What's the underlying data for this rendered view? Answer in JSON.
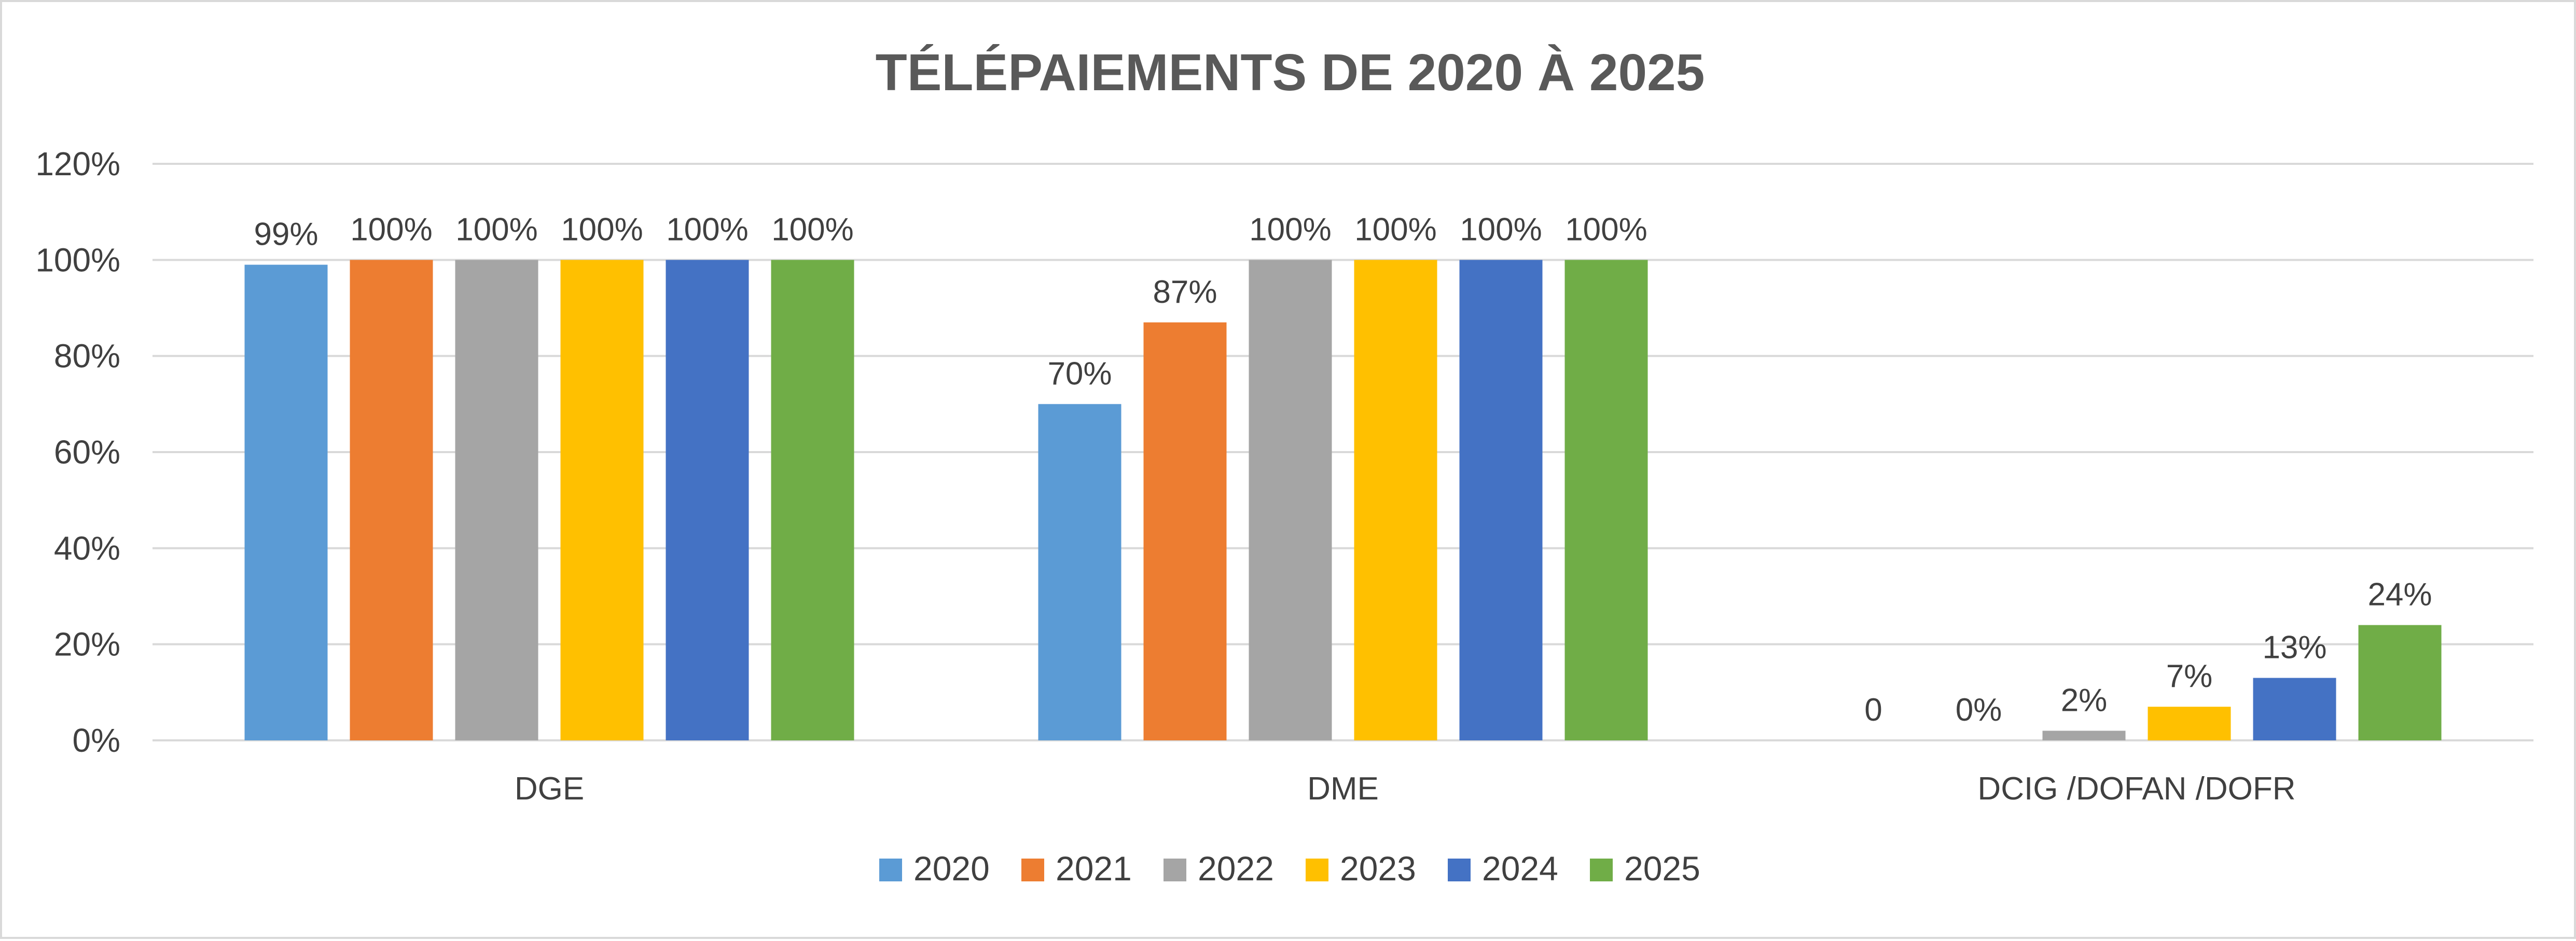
{
  "chart_data": {
    "type": "bar",
    "title": "TÉLÉPAIEMENTS DE 2020 À 2025",
    "xlabel": "",
    "ylabel": "",
    "ylim": [
      0,
      1.2
    ],
    "y_ticks": [
      {
        "value": 0,
        "label": "0%"
      },
      {
        "value": 0.2,
        "label": "20%"
      },
      {
        "value": 0.4,
        "label": "40%"
      },
      {
        "value": 0.6,
        "label": "60%"
      },
      {
        "value": 0.8,
        "label": "80%"
      },
      {
        "value": 1.0,
        "label": "100%"
      },
      {
        "value": 1.2,
        "label": "120%"
      }
    ],
    "grid": true,
    "legend_position": "bottom",
    "categories": [
      "DGE",
      "DME",
      "DCIG /DOFAN /DOFR"
    ],
    "series": [
      {
        "name": "2020",
        "color": "#5b9bd5",
        "values": [
          0.99,
          0.7,
          0
        ],
        "labels": [
          "99%",
          "70%",
          "0"
        ]
      },
      {
        "name": "2021",
        "color": "#ed7d31",
        "values": [
          1.0,
          0.87,
          0
        ],
        "labels": [
          "100%",
          "87%",
          "0%"
        ]
      },
      {
        "name": "2022",
        "color": "#a5a5a5",
        "values": [
          1.0,
          1.0,
          0.02
        ],
        "labels": [
          "100%",
          "100%",
          "2%"
        ]
      },
      {
        "name": "2023",
        "color": "#ffc000",
        "values": [
          1.0,
          1.0,
          0.07
        ],
        "labels": [
          "100%",
          "100%",
          "7%"
        ]
      },
      {
        "name": "2024",
        "color": "#4472c4",
        "values": [
          1.0,
          1.0,
          0.13
        ],
        "labels": [
          "100%",
          "100%",
          "13%"
        ]
      },
      {
        "name": "2025",
        "color": "#70ad47",
        "values": [
          1.0,
          1.0,
          0.24
        ],
        "labels": [
          "100%",
          "100%",
          "24%"
        ]
      }
    ]
  }
}
